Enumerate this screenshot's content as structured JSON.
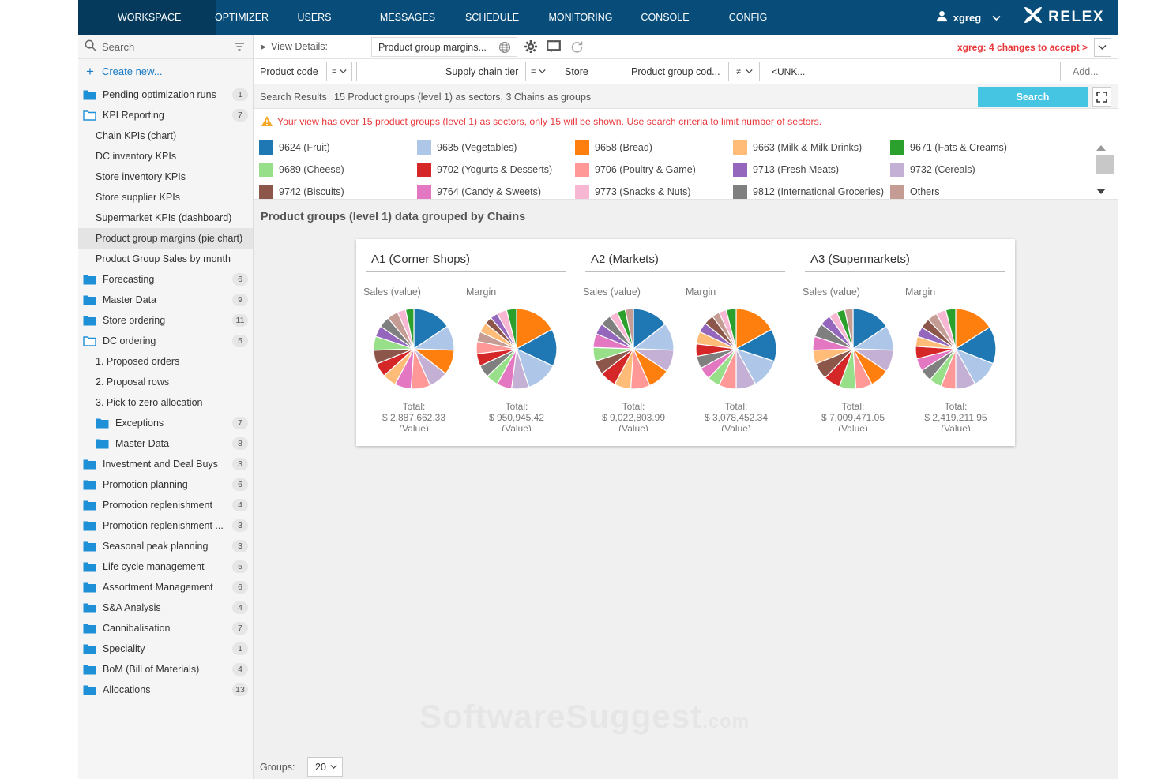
{
  "nav": {
    "tabs": [
      "WORKSPACE",
      "OPTIMIZER",
      "USERS",
      "MESSAGES",
      "SCHEDULE",
      "MONITORING",
      "CONSOLE",
      "CONFIG"
    ],
    "active": "WORKSPACE",
    "username": "xgreg",
    "logo_text": "RELEX"
  },
  "sidebar": {
    "search_placeholder": "Search",
    "create_new": "Create new...",
    "items": [
      {
        "label": "Pending optimization runs",
        "type": "folder",
        "count": "1"
      },
      {
        "label": "KPI Reporting",
        "type": "folder-open",
        "count": "7"
      },
      {
        "label": "Chain KPIs (chart)",
        "type": "child"
      },
      {
        "label": "DC inventory KPIs",
        "type": "child"
      },
      {
        "label": "Store inventory KPIs",
        "type": "child"
      },
      {
        "label": "Store supplier KPIs",
        "type": "child"
      },
      {
        "label": "Supermarket KPIs (dashboard)",
        "type": "child"
      },
      {
        "label": "Product group margins (pie chart)",
        "type": "child",
        "selected": true
      },
      {
        "label": "Product Group Sales by month",
        "type": "child"
      },
      {
        "label": "Forecasting",
        "type": "folder",
        "count": "6"
      },
      {
        "label": "Master Data",
        "type": "folder",
        "count": "9"
      },
      {
        "label": "Store ordering",
        "type": "folder",
        "count": "11"
      },
      {
        "label": "DC ordering",
        "type": "folder-open",
        "count": "5"
      },
      {
        "label": "1. Proposed orders",
        "type": "child"
      },
      {
        "label": "2. Proposal rows",
        "type": "child"
      },
      {
        "label": "3. Pick to zero allocation",
        "type": "child"
      },
      {
        "label": "Exceptions",
        "type": "subfolder",
        "count": "7"
      },
      {
        "label": "Master Data",
        "type": "subfolder",
        "count": "8"
      },
      {
        "label": "Investment and Deal Buys",
        "type": "folder",
        "count": "3"
      },
      {
        "label": "Promotion planning",
        "type": "folder",
        "count": "6"
      },
      {
        "label": "Promotion replenishment",
        "type": "folder",
        "count": "4"
      },
      {
        "label": "Promotion replenishment ...",
        "type": "folder",
        "count": "3"
      },
      {
        "label": "Seasonal peak planning",
        "type": "folder",
        "count": "3"
      },
      {
        "label": "Life cycle management",
        "type": "folder",
        "count": "5"
      },
      {
        "label": "Assortment Management",
        "type": "folder",
        "count": "6"
      },
      {
        "label": "S&A Analysis",
        "type": "folder",
        "count": "4"
      },
      {
        "label": "Cannibalisation",
        "type": "folder",
        "count": "7"
      },
      {
        "label": "Speciality",
        "type": "folder",
        "count": "1"
      },
      {
        "label": "BoM (Bill of Materials)",
        "type": "folder",
        "count": "4"
      },
      {
        "label": "Allocations",
        "type": "folder",
        "count": "13"
      }
    ]
  },
  "toolbar": {
    "view_details": "View Details:",
    "view_name": "Product group margins...",
    "changes": "xgreg: 4 changes to accept >"
  },
  "filters": {
    "product_code_label": "Product code",
    "product_code_op": "=",
    "product_code_value": "",
    "supply_chain_label": "Supply chain tier",
    "supply_chain_op": "=",
    "supply_chain_value": "Store",
    "product_group_label": "Product group cod...",
    "product_group_op": "≠",
    "product_group_value": "<UNK...",
    "add_label": "Add..."
  },
  "results": {
    "label": "Search Results",
    "summary": "15 Product groups (level 1) as sectors, 3 Chains as groups",
    "search_button": "Search"
  },
  "warning": "Your view has over 15 product groups (level 1) as sectors, only 15 will be shown. Use search criteria to limit number of sectors.",
  "legend": [
    {
      "label": "9624 (Fruit)",
      "color": "#1f77b4"
    },
    {
      "label": "9635 (Vegetables)",
      "color": "#aec7e8"
    },
    {
      "label": "9658 (Bread)",
      "color": "#ff7f0e"
    },
    {
      "label": "9663 (Milk & Milk Drinks)",
      "color": "#ffbb78"
    },
    {
      "label": "9671 (Fats & Creams)",
      "color": "#2ca02c"
    },
    {
      "label": "9689 (Cheese)",
      "color": "#98df8a"
    },
    {
      "label": "9702 (Yogurts & Desserts)",
      "color": "#d62728"
    },
    {
      "label": "9706 (Poultry & Game)",
      "color": "#ff9896"
    },
    {
      "label": "9713 (Fresh Meats)",
      "color": "#9467bd"
    },
    {
      "label": "9732 (Cereals)",
      "color": "#c5b0d5"
    },
    {
      "label": "9742 (Biscuits)",
      "color": "#8c564b"
    },
    {
      "label": "9764 (Candy & Sweets)",
      "color": "#e377c2"
    },
    {
      "label": "9773 (Snacks & Nuts)",
      "color": "#f7b6d2"
    },
    {
      "label": "9812 (International Groceries)",
      "color": "#7f7f7f"
    },
    {
      "label": "Others",
      "color": "#c49c94"
    }
  ],
  "section_title": "Product groups (level 1) data grouped by Chains",
  "chart_data": [
    {
      "type": "pie",
      "group": "A1 (Corner Shops)",
      "title": "Sales (value)",
      "total_label": "Total:",
      "total": "$ 2,887,662.33",
      "unit": "(Value)",
      "slices": [
        {
          "color": "#1f77b4",
          "value": 14
        },
        {
          "color": "#aec7e8",
          "value": 9
        },
        {
          "color": "#ff7f0e",
          "value": 9
        },
        {
          "color": "#c5b0d5",
          "value": 7
        },
        {
          "color": "#ff9896",
          "value": 7
        },
        {
          "color": "#e377c2",
          "value": 6
        },
        {
          "color": "#ffbb78",
          "value": 5
        },
        {
          "color": "#d62728",
          "value": 5
        },
        {
          "color": "#8c564b",
          "value": 5
        },
        {
          "color": "#98df8a",
          "value": 5
        },
        {
          "color": "#9467bd",
          "value": 4
        },
        {
          "color": "#7f7f7f",
          "value": 4
        },
        {
          "color": "#c49c94",
          "value": 4
        },
        {
          "color": "#f7b6d2",
          "value": 3
        },
        {
          "color": "#2ca02c",
          "value": 3
        }
      ]
    },
    {
      "type": "pie",
      "group": "A1 (Corner Shops)",
      "title": "Margin",
      "total_label": "Total:",
      "total": "$ 950,945.42",
      "unit": "(Value)",
      "slices": [
        {
          "color": "#ff7f0e",
          "value": 17
        },
        {
          "color": "#1f77b4",
          "value": 15
        },
        {
          "color": "#aec7e8",
          "value": 13
        },
        {
          "color": "#c5b0d5",
          "value": 7
        },
        {
          "color": "#e377c2",
          "value": 6
        },
        {
          "color": "#98df8a",
          "value": 5
        },
        {
          "color": "#7f7f7f",
          "value": 5
        },
        {
          "color": "#d62728",
          "value": 5
        },
        {
          "color": "#ff9896",
          "value": 5
        },
        {
          "color": "#c49c94",
          "value": 4
        },
        {
          "color": "#ffbb78",
          "value": 4
        },
        {
          "color": "#8c564b",
          "value": 3
        },
        {
          "color": "#9467bd",
          "value": 3
        },
        {
          "color": "#f7b6d2",
          "value": 4
        },
        {
          "color": "#2ca02c",
          "value": 4
        }
      ]
    },
    {
      "type": "pie",
      "group": "A2 (Markets)",
      "title": "Sales (value)",
      "total_label": "Total:",
      "total": "$ 9,022,803.99",
      "unit": "(Value)",
      "slices": [
        {
          "color": "#1f77b4",
          "value": 13
        },
        {
          "color": "#aec7e8",
          "value": 10
        },
        {
          "color": "#c5b0d5",
          "value": 8
        },
        {
          "color": "#ff7f0e",
          "value": 8
        },
        {
          "color": "#ff9896",
          "value": 7
        },
        {
          "color": "#ffbb78",
          "value": 6
        },
        {
          "color": "#d62728",
          "value": 6
        },
        {
          "color": "#8c564b",
          "value": 5
        },
        {
          "color": "#98df8a",
          "value": 5
        },
        {
          "color": "#e377c2",
          "value": 5
        },
        {
          "color": "#9467bd",
          "value": 4
        },
        {
          "color": "#7f7f7f",
          "value": 4
        },
        {
          "color": "#f7b6d2",
          "value": 3
        },
        {
          "color": "#2ca02c",
          "value": 3
        },
        {
          "color": "#c49c94",
          "value": 3
        }
      ]
    },
    {
      "type": "pie",
      "group": "A2 (Markets)",
      "title": "Margin",
      "total_label": "Total:",
      "total": "$ 3,078,452.34",
      "unit": "(Value)",
      "slices": [
        {
          "color": "#ff7f0e",
          "value": 17
        },
        {
          "color": "#1f77b4",
          "value": 13
        },
        {
          "color": "#aec7e8",
          "value": 12
        },
        {
          "color": "#c5b0d5",
          "value": 8
        },
        {
          "color": "#ff9896",
          "value": 7
        },
        {
          "color": "#98df8a",
          "value": 5
        },
        {
          "color": "#e377c2",
          "value": 5
        },
        {
          "color": "#7f7f7f",
          "value": 5
        },
        {
          "color": "#d62728",
          "value": 5
        },
        {
          "color": "#ffbb78",
          "value": 5
        },
        {
          "color": "#9467bd",
          "value": 4
        },
        {
          "color": "#8c564b",
          "value": 4
        },
        {
          "color": "#c49c94",
          "value": 3
        },
        {
          "color": "#f7b6d2",
          "value": 3
        },
        {
          "color": "#2ca02c",
          "value": 4
        }
      ]
    },
    {
      "type": "pie",
      "group": "A3 (Supermarkets)",
      "title": "Sales (value)",
      "total_label": "Total:",
      "total": "$ 7,009,471.05",
      "unit": "(Value)",
      "slices": [
        {
          "color": "#1f77b4",
          "value": 14
        },
        {
          "color": "#aec7e8",
          "value": 9
        },
        {
          "color": "#c5b0d5",
          "value": 8
        },
        {
          "color": "#ff7f0e",
          "value": 7
        },
        {
          "color": "#ff9896",
          "value": 6
        },
        {
          "color": "#98df8a",
          "value": 6
        },
        {
          "color": "#d62728",
          "value": 6
        },
        {
          "color": "#8c564b",
          "value": 6
        },
        {
          "color": "#ffbb78",
          "value": 5
        },
        {
          "color": "#e377c2",
          "value": 5
        },
        {
          "color": "#7f7f7f",
          "value": 5
        },
        {
          "color": "#9467bd",
          "value": 4
        },
        {
          "color": "#f7b6d2",
          "value": 3
        },
        {
          "color": "#2ca02c",
          "value": 3
        },
        {
          "color": "#c49c94",
          "value": 3
        }
      ]
    },
    {
      "type": "pie",
      "group": "A3 (Supermarkets)",
      "title": "Margin",
      "total_label": "Total:",
      "total": "$ 2,419,211.95",
      "unit": "(Value)",
      "slices": [
        {
          "color": "#ff7f0e",
          "value": 16
        },
        {
          "color": "#1f77b4",
          "value": 15
        },
        {
          "color": "#aec7e8",
          "value": 11
        },
        {
          "color": "#c5b0d5",
          "value": 8
        },
        {
          "color": "#ff9896",
          "value": 6
        },
        {
          "color": "#98df8a",
          "value": 5
        },
        {
          "color": "#7f7f7f",
          "value": 5
        },
        {
          "color": "#e377c2",
          "value": 5
        },
        {
          "color": "#d62728",
          "value": 5
        },
        {
          "color": "#ffbb78",
          "value": 4
        },
        {
          "color": "#9467bd",
          "value": 4
        },
        {
          "color": "#8c564b",
          "value": 4
        },
        {
          "color": "#c49c94",
          "value": 4
        },
        {
          "color": "#f7b6d2",
          "value": 4
        },
        {
          "color": "#2ca02c",
          "value": 4
        }
      ]
    }
  ],
  "footer": {
    "groups_label": "Groups:",
    "groups_value": "20"
  },
  "watermark": {
    "main": "SoftwareSuggest",
    "suffix": ".com"
  },
  "colors": {
    "nav_bg": "#084d7a",
    "nav_active": "#053a5d",
    "accent": "#1a7bc4",
    "search_btn": "#45c5e2",
    "warning": "#e8383b",
    "folder": "#1e90d8"
  },
  "icons": [
    "search-icon",
    "filter-icon",
    "plus-icon",
    "folder-icon",
    "folder-open-icon",
    "gear-icon",
    "comment-icon",
    "refresh-icon",
    "globe-icon",
    "user-icon",
    "chevron-down-icon",
    "warning-icon",
    "fullscreen-icon",
    "relex-logo-icon",
    "scroll-up-icon",
    "scroll-down-icon"
  ]
}
